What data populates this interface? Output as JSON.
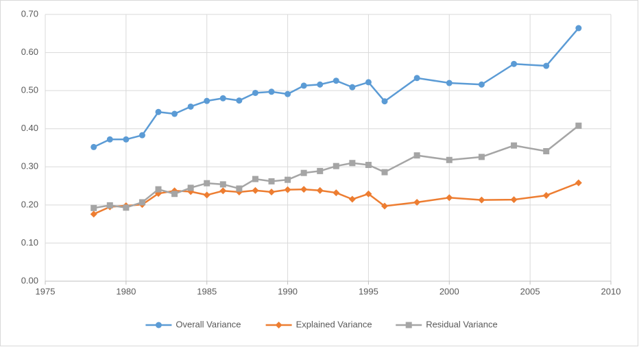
{
  "chart_data": {
    "type": "line",
    "x": [
      1978,
      1979,
      1980,
      1981,
      1982,
      1983,
      1984,
      1985,
      1986,
      1987,
      1988,
      1989,
      1990,
      1991,
      1992,
      1993,
      1994,
      1995,
      1996,
      1998,
      2000,
      2002,
      2004,
      2006,
      2008
    ],
    "series": [
      {
        "name": "Overall Variance",
        "color": "#5b9bd5",
        "marker": "circle",
        "values": [
          0.352,
          0.372,
          0.372,
          0.383,
          0.444,
          0.439,
          0.458,
          0.473,
          0.48,
          0.474,
          0.494,
          0.497,
          0.491,
          0.513,
          0.516,
          0.526,
          0.509,
          0.522,
          0.472,
          0.533,
          0.52,
          0.516,
          0.57,
          0.565,
          0.664
        ]
      },
      {
        "name": "Explained Variance",
        "color": "#ed7d31",
        "marker": "diamond",
        "values": [
          0.176,
          0.195,
          0.198,
          0.201,
          0.23,
          0.237,
          0.235,
          0.226,
          0.237,
          0.234,
          0.238,
          0.234,
          0.24,
          0.241,
          0.238,
          0.232,
          0.215,
          0.229,
          0.197,
          0.207,
          0.219,
          0.213,
          0.214,
          0.225,
          0.258
        ]
      },
      {
        "name": "Residual Variance",
        "color": "#a5a5a5",
        "marker": "square",
        "values": [
          0.192,
          0.199,
          0.193,
          0.207,
          0.241,
          0.229,
          0.245,
          0.257,
          0.254,
          0.243,
          0.268,
          0.262,
          0.266,
          0.284,
          0.289,
          0.302,
          0.31,
          0.305,
          0.286,
          0.33,
          0.318,
          0.326,
          0.356,
          0.341,
          0.408
        ]
      }
    ],
    "xlim": [
      1975,
      2010
    ],
    "xticks": [
      1975,
      1980,
      1985,
      1990,
      1995,
      2000,
      2005,
      2010
    ],
    "ylim": [
      0,
      0.7
    ],
    "yticks": [
      {
        "value": 0,
        "label": "0.00"
      },
      {
        "value": 0.1,
        "label": "0.10"
      },
      {
        "value": 0.2,
        "label": "0.20"
      },
      {
        "value": 0.3,
        "label": "0.30"
      },
      {
        "value": 0.4,
        "label": "0.40"
      },
      {
        "value": 0.5,
        "label": "0.50"
      },
      {
        "value": 0.6,
        "label": "0.60"
      },
      {
        "value": 0.7,
        "label": "0.70"
      }
    ],
    "grid": true,
    "legend": "bottom"
  }
}
